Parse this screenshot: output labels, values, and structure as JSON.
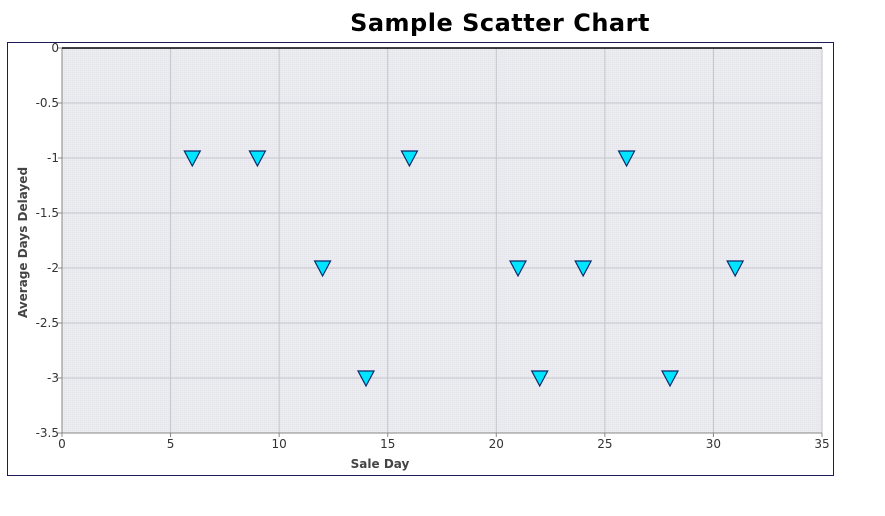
{
  "chart_data": {
    "type": "scatter",
    "title": "Sample Scatter Chart",
    "xlabel": "Sale Day",
    "ylabel": "Average Days Delayed",
    "xlim": [
      0,
      35
    ],
    "ylim": [
      -3.5,
      0
    ],
    "x_ticks": [
      0,
      5,
      10,
      15,
      20,
      25,
      30,
      35
    ],
    "y_ticks": [
      0,
      -0.5,
      -1,
      -1.5,
      -2,
      -2.5,
      -3,
      -3.5
    ],
    "x_tick_labels": [
      "0",
      "5",
      "10",
      "15",
      "20",
      "25",
      "30",
      "35"
    ],
    "y_tick_labels": [
      "0",
      "-0.5",
      "-1",
      "-1.5",
      "-2",
      "-2.5",
      "-3",
      "-3.5"
    ],
    "grid": true,
    "marker": "triangle-down",
    "marker_color": "#00e5ff",
    "marker_edge_color": "#0a2a6a",
    "plot_background": "#ebebf0",
    "series": [
      {
        "x": [
          6,
          9,
          12,
          14,
          16,
          21,
          22,
          24,
          26,
          28,
          31
        ],
        "y": [
          -1,
          -1,
          -2,
          -3,
          -1,
          -2,
          -3,
          -2,
          -1,
          -3,
          -2
        ]
      }
    ]
  }
}
